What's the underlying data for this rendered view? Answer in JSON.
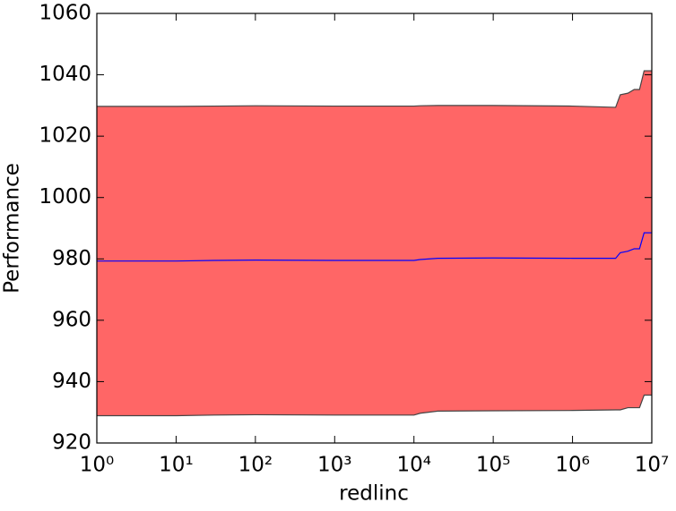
{
  "chart_data": {
    "type": "band-line",
    "xlabel": "redlinc",
    "ylabel": "Performance",
    "log_x": true,
    "x": [
      1,
      10,
      30,
      100,
      1000,
      10000,
      12000,
      20000,
      100000,
      1000000,
      3500000,
      4000000,
      5000000,
      6000000,
      7000000,
      8000000,
      10000000
    ],
    "values": [
      979.3,
      979.3,
      979.5,
      979.6,
      979.5,
      979.5,
      979.8,
      980.2,
      980.3,
      980.2,
      980.2,
      982.0,
      982.5,
      983.3,
      983.3,
      988.5,
      988.5
    ],
    "upper": [
      1029.7,
      1029.7,
      1029.8,
      1029.9,
      1029.8,
      1029.8,
      1029.9,
      1030.0,
      1030.0,
      1029.8,
      1029.4,
      1033.5,
      1034.0,
      1035.2,
      1035.2,
      1041.3,
      1041.3
    ],
    "lower": [
      928.9,
      928.9,
      929.1,
      929.2,
      929.1,
      929.1,
      929.7,
      930.4,
      930.5,
      930.6,
      930.8,
      930.8,
      931.5,
      931.5,
      931.5,
      935.6,
      935.6
    ],
    "color": "#0000ff",
    "band_color": "#ff6666",
    "band_edge_color": "#444444",
    "xlim": [
      1,
      10000000
    ],
    "xticks": [
      {
        "value": 1,
        "label": "10⁰"
      },
      {
        "value": 10,
        "label": "10¹"
      },
      {
        "value": 100,
        "label": "10²"
      },
      {
        "value": 1000,
        "label": "10³"
      },
      {
        "value": 10000,
        "label": "10⁴"
      },
      {
        "value": 100000,
        "label": "10⁵"
      },
      {
        "value": 1000000,
        "label": "10⁶"
      },
      {
        "value": 10000000,
        "label": "10⁷"
      }
    ],
    "ylim": [
      920,
      1060
    ],
    "yticks": [
      920,
      940,
      960,
      980,
      1000,
      1020,
      1040,
      1060
    ]
  }
}
